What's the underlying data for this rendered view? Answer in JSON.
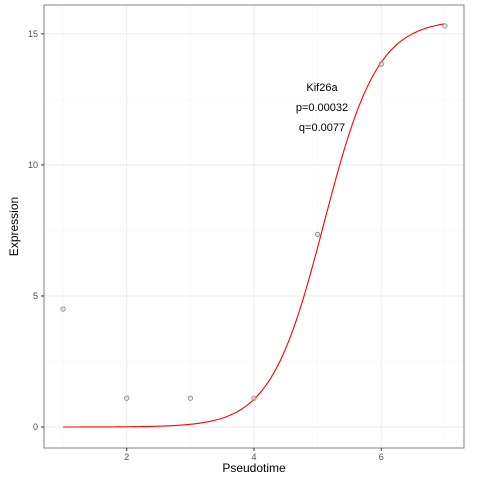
{
  "chart_data": {
    "type": "scatter",
    "xlabel": "Pseudotime",
    "ylabel": "Expression",
    "xlim": [
      0.7,
      7.3
    ],
    "ylim": [
      -0.8,
      16.1
    ],
    "x_ticks": [
      2,
      4,
      6
    ],
    "x_tick_labels": [
      "2",
      "4",
      "6"
    ],
    "y_ticks": [
      0,
      5,
      10,
      15
    ],
    "y_tick_labels": [
      "0",
      "5",
      "10",
      "15"
    ],
    "grid": true,
    "points": {
      "x": [
        1,
        2,
        3,
        4,
        5,
        6,
        7
      ],
      "y": [
        4.5,
        1.1,
        1.1,
        1.1,
        7.35,
        13.85,
        15.3
      ]
    },
    "fit_curve": {
      "type": "logistic",
      "L": 15.55,
      "k": 2.38,
      "x0": 5.1,
      "color": "#ff0000"
    },
    "annotations": [
      "Kif26a",
      "p=0.00032",
      "q=0.0077"
    ],
    "colors": {
      "point_stroke": "#7f7f7f",
      "point_fill": "#d9d9d9",
      "curve": "#ff0000",
      "panel_border": "#808080",
      "grid": "#ebebeb"
    }
  }
}
